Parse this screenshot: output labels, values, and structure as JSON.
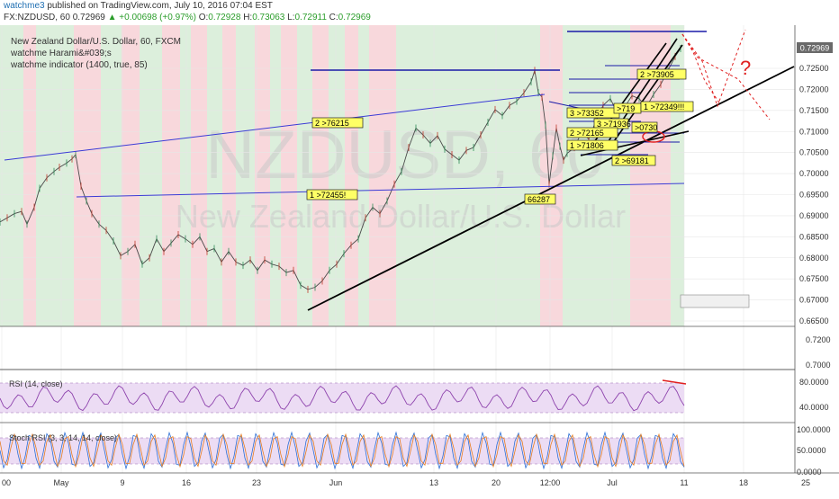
{
  "header": {
    "author": "watchme3",
    "published": "published on TradingView.com, July 10, 2016 07:04 EST",
    "symbol": "FX:NZDUSD, 60",
    "last": "0.72969",
    "change": "▲ +0.00698 (+0.97%)",
    "open_label": "O:",
    "open": "0.72928",
    "high_label": "H:",
    "high": "0.73063",
    "low_label": "L:",
    "low": "0.72911",
    "close_label": "C:",
    "close": "0.72969"
  },
  "legend": {
    "title": "New Zealand Dollar/U.S. Dollar, 60, FXCM",
    "study1": "watchme Harami&#039;s",
    "study2": "watchme indicator (1400, true, 85)"
  },
  "watermark": {
    "symbol": "NZDUSD, 60",
    "name": "New Zealand Dollar/U.S. Dollar"
  },
  "price_badge": "0.72969",
  "chart_data": [
    {
      "type": "line",
      "title": "FX:NZDUSD, 60",
      "x_tick_labels": [
        "00",
        "May",
        "9",
        "16",
        "23",
        "Jun",
        "13",
        "20",
        "12:00",
        "Jul",
        "11",
        "18",
        "25"
      ],
      "y_ticks": [
        "0.72500",
        "0.72000",
        "0.71500",
        "0.71000",
        "0.70500",
        "0.70000",
        "0.69500",
        "0.69000",
        "0.68500",
        "0.68000",
        "0.67500",
        "0.67000",
        "0.66500"
      ],
      "ylim": [
        0.6645,
        0.7335
      ],
      "series": [
        {
          "x": [
            0,
            8,
            16,
            24,
            30,
            38,
            44,
            52,
            60,
            66,
            74,
            80,
            84,
            90,
            96,
            102,
            110,
            118,
            126,
            134,
            142,
            150,
            158,
            166,
            174,
            182,
            190,
            198,
            206,
            214,
            222,
            230,
            238,
            246,
            254,
            262,
            270,
            278,
            286,
            294,
            302,
            310,
            318,
            326,
            334,
            342,
            350,
            358,
            366,
            374,
            382,
            390,
            398,
            406,
            414,
            422,
            430,
            438,
            446,
            454,
            462,
            470,
            478,
            486,
            494,
            502,
            510,
            518,
            526,
            534,
            542,
            550,
            558,
            566,
            574,
            582,
            590,
            594,
            598,
            602,
            606,
            610,
            614,
            618,
            622,
            626,
            630,
            638,
            646,
            654,
            662,
            670,
            678,
            686,
            694,
            702,
            710,
            718,
            726,
            734,
            742,
            750,
            756
          ],
          "y": [
            0.6885,
            0.6895,
            0.6905,
            0.691,
            0.688,
            0.692,
            0.6965,
            0.699,
            0.7005,
            0.7015,
            0.7025,
            0.7035,
            0.7045,
            0.697,
            0.6935,
            0.6905,
            0.688,
            0.6865,
            0.684,
            0.6805,
            0.6815,
            0.6832,
            0.6785,
            0.68,
            0.6845,
            0.6815,
            0.6835,
            0.6855,
            0.6845,
            0.6832,
            0.685,
            0.6815,
            0.6822,
            0.679,
            0.6815,
            0.679,
            0.6782,
            0.6795,
            0.677,
            0.6795,
            0.6785,
            0.678,
            0.6765,
            0.677,
            0.6735,
            0.6725,
            0.673,
            0.6745,
            0.677,
            0.6785,
            0.681,
            0.683,
            0.6845,
            0.6895,
            0.692,
            0.6905,
            0.6935,
            0.6975,
            0.7005,
            0.7062,
            0.7108,
            0.7092,
            0.7072,
            0.709,
            0.7058,
            0.7045,
            0.7032,
            0.7055,
            0.7062,
            0.7092,
            0.7122,
            0.7152,
            0.7138,
            0.7162,
            0.7172,
            0.7192,
            0.7218,
            0.7245,
            0.7192,
            0.7182,
            0.7115,
            0.6975,
            0.7042,
            0.7108,
            0.7065,
            0.7032,
            0.7048,
            0.7062,
            0.7098,
            0.7082,
            0.7125,
            0.7162,
            0.7178,
            0.7142,
            0.7158,
            0.7185,
            0.7178,
            0.7158,
            0.7188,
            0.7212,
            0.7245,
            0.7278,
            0.7297
          ]
        }
      ],
      "labels": [
        "2 >76215",
        "1 >72455!",
        "66287",
        "3 >73352",
        "2 >73905",
        "3 >71936",
        "2 >72165",
        "1 >71806",
        ">0730",
        ">719",
        "1 >72349!!!",
        "2 >69181",
        "?"
      ]
    },
    {
      "type": "line",
      "title": "",
      "y_ticks": [
        "0.7200",
        "0.7000"
      ]
    },
    {
      "type": "line",
      "title": "RSI (14, close)",
      "y_ticks": [
        "80.0000",
        "40.0000"
      ],
      "ylim": [
        20,
        90
      ]
    },
    {
      "type": "line",
      "title": "Stoch RSI (3, 3, 14, 14, close)",
      "y_ticks": [
        "100.0000",
        "50.0000",
        "0.0000"
      ],
      "ylim": [
        -8,
        108
      ]
    }
  ]
}
